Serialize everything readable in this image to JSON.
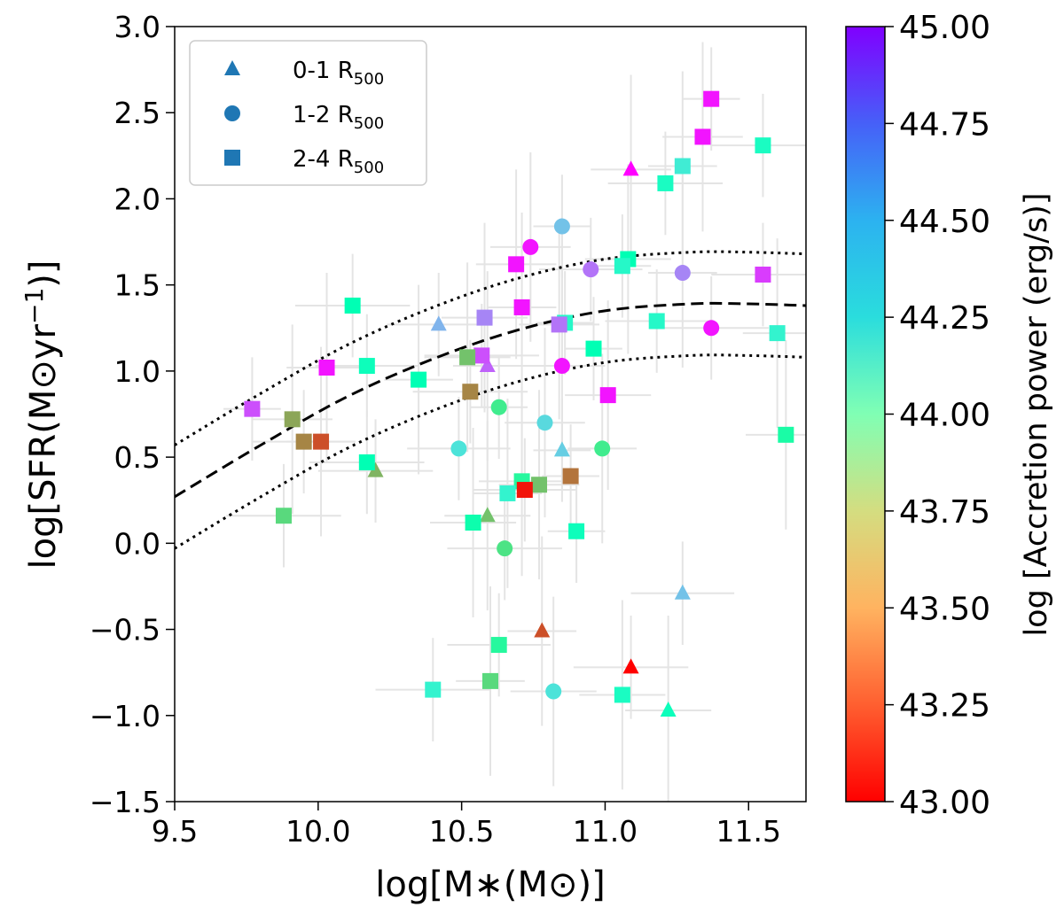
{
  "chart_data": {
    "type": "scatter",
    "xlabel": "log[M∗(M⊙)]",
    "ylabel_main": "log[SFR(M⊙yr",
    "ylabel_sup": "−1",
    "ylabel_end": ")]",
    "xlim": [
      9.5,
      11.7
    ],
    "ylim": [
      -1.5,
      3.0
    ],
    "x_ticks": [
      9.5,
      10.0,
      10.5,
      11.0,
      11.5
    ],
    "x_tick_labels": [
      "9.5",
      "10.0",
      "10.5",
      "11.0",
      "11.5"
    ],
    "y_ticks": [
      -1.5,
      -1.0,
      -0.5,
      0.0,
      0.5,
      1.0,
      1.5,
      2.0,
      2.5,
      3.0
    ],
    "y_tick_labels": [
      "−1.5",
      "−1.0",
      "−0.5",
      "0.0",
      "0.5",
      "1.0",
      "1.5",
      "2.0",
      "2.5",
      "3.0"
    ],
    "colorbar": {
      "label": "log [Accretion power (erg/s)]",
      "range": [
        43.0,
        45.0
      ],
      "ticks": [
        43.0,
        43.25,
        43.5,
        43.75,
        44.0,
        44.25,
        44.5,
        44.75,
        45.0
      ],
      "tick_labels": [
        "43.00",
        "43.25",
        "43.50",
        "43.75",
        "44.00",
        "44.25",
        "44.50",
        "44.75",
        "45.00"
      ],
      "colormap": "rainbow"
    },
    "legend": {
      "placement": "top-left",
      "entries": [
        {
          "marker": "triangle",
          "label": "0-1 R",
          "sub": "500"
        },
        {
          "marker": "circle",
          "label": "1-2 R",
          "sub": "500"
        },
        {
          "marker": "square",
          "label": "2-4 R",
          "sub": "500"
        }
      ],
      "marker_color": "#1f77b4"
    },
    "curves": {
      "main": {
        "style": "dashed",
        "x": [
          9.5,
          9.8,
          10.1,
          10.4,
          10.7,
          11.0,
          11.3,
          11.5,
          11.7
        ],
        "y": [
          0.27,
          0.57,
          0.85,
          1.07,
          1.24,
          1.35,
          1.39,
          1.39,
          1.38
        ]
      },
      "upper": {
        "style": "dotted",
        "x": [
          9.5,
          9.8,
          10.1,
          10.4,
          10.7,
          11.0,
          11.3,
          11.5,
          11.7
        ],
        "y": [
          0.57,
          0.87,
          1.15,
          1.37,
          1.54,
          1.65,
          1.69,
          1.69,
          1.68
        ]
      },
      "lower": {
        "style": "dotted",
        "x": [
          9.5,
          9.8,
          10.1,
          10.4,
          10.7,
          11.0,
          11.3,
          11.5,
          11.7
        ],
        "y": [
          -0.03,
          0.27,
          0.55,
          0.77,
          0.94,
          1.05,
          1.09,
          1.09,
          1.08
        ]
      }
    },
    "series": [
      {
        "name": "0-1 R500",
        "marker": "triangle",
        "points": [
          {
            "x": 10.42,
            "y": 1.27,
            "c": 44.5
          },
          {
            "x": 10.59,
            "y": 1.03,
            "c": 44.75
          },
          {
            "x": 10.2,
            "y": 0.42,
            "c": 43.5
          },
          {
            "x": 10.59,
            "y": 0.16,
            "c": 43.55
          },
          {
            "x": 10.85,
            "y": 0.54,
            "c": 44.4
          },
          {
            "x": 11.09,
            "y": 2.17,
            "c": 45.0
          },
          {
            "x": 11.27,
            "y": -0.29,
            "c": 44.45
          },
          {
            "x": 10.78,
            "y": -0.51,
            "c": 43.2
          },
          {
            "x": 11.09,
            "y": -0.72,
            "c": 43.0
          },
          {
            "x": 11.22,
            "y": -0.97,
            "c": 44.05
          }
        ]
      },
      {
        "name": "1-2 R500",
        "marker": "circle",
        "points": [
          {
            "x": 10.85,
            "y": 1.84,
            "c": 44.45
          },
          {
            "x": 10.74,
            "y": 1.72,
            "c": 44.95
          },
          {
            "x": 10.95,
            "y": 1.59,
            "c": 44.7
          },
          {
            "x": 11.27,
            "y": 1.57,
            "c": 44.65
          },
          {
            "x": 11.37,
            "y": 1.25,
            "c": 44.95
          },
          {
            "x": 10.85,
            "y": 1.03,
            "c": 44.95
          },
          {
            "x": 10.63,
            "y": 0.79,
            "c": 43.75
          },
          {
            "x": 10.79,
            "y": 0.7,
            "c": 44.35
          },
          {
            "x": 10.49,
            "y": 0.55,
            "c": 44.3
          },
          {
            "x": 10.99,
            "y": 0.55,
            "c": 43.75
          },
          {
            "x": 10.65,
            "y": -0.03,
            "c": 43.7
          },
          {
            "x": 10.82,
            "y": -0.86,
            "c": 44.3
          }
        ]
      },
      {
        "name": "2-4 R500",
        "marker": "square",
        "points": [
          {
            "x": 11.37,
            "y": 2.58,
            "c": 44.95
          },
          {
            "x": 11.34,
            "y": 2.36,
            "c": 44.95
          },
          {
            "x": 11.55,
            "y": 2.31,
            "c": 44.1
          },
          {
            "x": 11.27,
            "y": 2.19,
            "c": 44.25
          },
          {
            "x": 11.21,
            "y": 2.09,
            "c": 44.1
          },
          {
            "x": 11.08,
            "y": 1.65,
            "c": 44.0
          },
          {
            "x": 11.06,
            "y": 1.61,
            "c": 44.15
          },
          {
            "x": 10.69,
            "y": 1.62,
            "c": 44.95
          },
          {
            "x": 11.55,
            "y": 1.56,
            "c": 44.85
          },
          {
            "x": 10.71,
            "y": 1.37,
            "c": 44.95
          },
          {
            "x": 10.12,
            "y": 1.38,
            "c": 44.0
          },
          {
            "x": 10.58,
            "y": 1.31,
            "c": 44.65
          },
          {
            "x": 10.86,
            "y": 1.28,
            "c": 44.15
          },
          {
            "x": 10.84,
            "y": 1.27,
            "c": 44.7
          },
          {
            "x": 11.18,
            "y": 1.29,
            "c": 44.15
          },
          {
            "x": 11.6,
            "y": 1.22,
            "c": 44.2
          },
          {
            "x": 10.57,
            "y": 1.09,
            "c": 44.8
          },
          {
            "x": 10.52,
            "y": 1.08,
            "c": 43.55
          },
          {
            "x": 10.96,
            "y": 1.13,
            "c": 44.0
          },
          {
            "x": 10.03,
            "y": 1.02,
            "c": 44.95
          },
          {
            "x": 10.17,
            "y": 1.03,
            "c": 44.05
          },
          {
            "x": 10.35,
            "y": 0.95,
            "c": 44.0
          },
          {
            "x": 10.53,
            "y": 0.88,
            "c": 43.35
          },
          {
            "x": 11.01,
            "y": 0.86,
            "c": 44.95
          },
          {
            "x": 9.77,
            "y": 0.78,
            "c": 44.8
          },
          {
            "x": 9.91,
            "y": 0.72,
            "c": 43.45
          },
          {
            "x": 9.95,
            "y": 0.59,
            "c": 43.35
          },
          {
            "x": 10.01,
            "y": 0.59,
            "c": 43.2
          },
          {
            "x": 10.17,
            "y": 0.47,
            "c": 44.0
          },
          {
            "x": 10.71,
            "y": 0.36,
            "c": 43.85
          },
          {
            "x": 10.88,
            "y": 0.39,
            "c": 43.3
          },
          {
            "x": 10.77,
            "y": 0.34,
            "c": 43.55
          },
          {
            "x": 10.72,
            "y": 0.31,
            "c": 43.05
          },
          {
            "x": 10.66,
            "y": 0.29,
            "c": 44.2
          },
          {
            "x": 9.88,
            "y": 0.16,
            "c": 43.65
          },
          {
            "x": 10.54,
            "y": 0.12,
            "c": 43.95
          },
          {
            "x": 10.9,
            "y": 0.07,
            "c": 44.05
          },
          {
            "x": 11.63,
            "y": 0.63,
            "c": 43.9
          },
          {
            "x": 10.63,
            "y": -0.59,
            "c": 43.85
          },
          {
            "x": 10.6,
            "y": -0.8,
            "c": 43.65
          },
          {
            "x": 10.4,
            "y": -0.85,
            "c": 44.2
          },
          {
            "x": 11.06,
            "y": -0.88,
            "c": 44.1
          }
        ]
      }
    ]
  }
}
